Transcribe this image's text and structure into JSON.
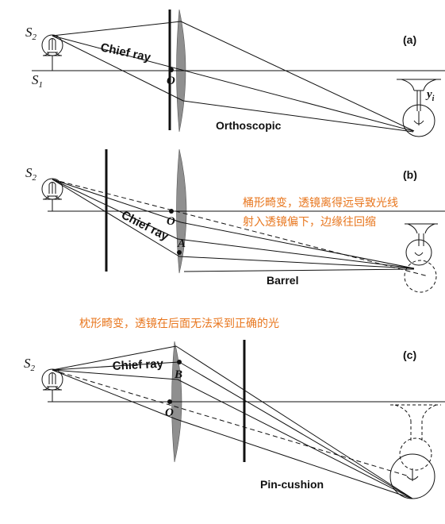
{
  "panels": [
    {
      "id": "a",
      "tag": "(a)",
      "source_label": "S",
      "source_sub": "2",
      "axis_label": "S",
      "axis_sub": "1",
      "ray_label": "Chief ray",
      "center_label": "O",
      "image_label": "y",
      "image_sub": "i",
      "caption": "Orthoscopic"
    },
    {
      "id": "b",
      "tag": "(b)",
      "source_label": "S",
      "source_sub": "2",
      "ray_label": "Chief ray",
      "center_label": "O",
      "point_label": "A",
      "caption": "Barrel"
    },
    {
      "id": "c",
      "tag": "(c)",
      "source_label": "S",
      "source_sub": "2",
      "ray_label": "Chief ray",
      "center_label": "O",
      "point_label": "B",
      "caption": "Pin-cushion"
    }
  ],
  "notes": {
    "barrel_line1": "桶形畸变，透镜离得远导致光线",
    "barrel_line2": "射入透镜偏下，边缘往回缩",
    "pincushion": "枕形畸变，透镜在后面无法采到正确的光"
  },
  "colors": {
    "ink": "#111111",
    "lens": "#8f8f8f",
    "note": "#e8771f"
  }
}
